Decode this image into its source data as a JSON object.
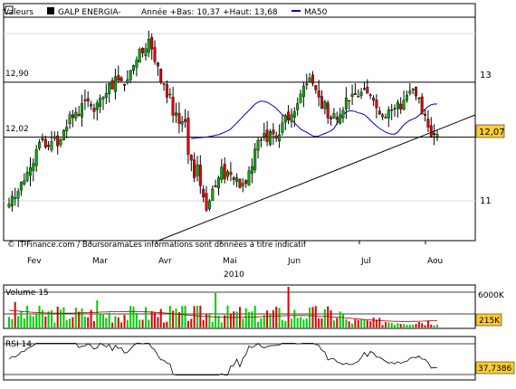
{
  "chart_data": [
    {
      "type": "candlestick",
      "name": "GALP ENERGIA-",
      "legend": {
        "label": "Valeurs",
        "series_name": "GALP ENERGIA-",
        "range_text": "Année +Bas: 10,37 +Haut: 13,68",
        "ma_label": "MA50",
        "ma_color": "#0000cc"
      },
      "y_axis": {
        "ticks": [
          "13",
          "12,07",
          "11"
        ],
        "range": [
          10.2,
          13.85
        ]
      },
      "levels": [
        {
          "label": "12,90",
          "value": 12.9
        },
        {
          "label": "12,02",
          "value": 12.02
        }
      ],
      "last_value": "12,07",
      "x_axis": {
        "months": [
          "Fev",
          "Mar",
          "Avr",
          "Mai",
          "Jun",
          "Jul",
          "Aou"
        ],
        "year": "2010"
      },
      "watermark": "© IT-Finance.com / BoursoramaLes informations sont données à titre indicatif",
      "close": [
        10.95,
        11.08,
        11.05,
        11.15,
        11.3,
        11.32,
        11.46,
        11.53,
        11.6,
        11.82,
        11.94,
        11.98,
        11.86,
        11.87,
        11.95,
        12.03,
        11.88,
        11.98,
        12.13,
        12.18,
        12.38,
        12.33,
        12.42,
        12.37,
        12.56,
        12.61,
        12.6,
        12.52,
        12.43,
        12.57,
        12.64,
        12.66,
        12.72,
        12.88,
        12.79,
        12.99,
        12.93,
        12.92,
        12.85,
        12.94,
        13.09,
        13.17,
        13.26,
        13.43,
        13.37,
        13.44,
        13.59,
        13.43,
        13.23,
        13.16,
        12.9,
        12.87,
        12.66,
        12.71,
        12.37,
        12.41,
        12.24,
        12.27,
        12.27,
        11.74,
        11.65,
        11.37,
        11.58,
        11.24,
        11.06,
        10.85,
        11.0,
        11.19,
        11.22,
        11.37,
        11.54,
        11.35,
        11.47,
        11.42,
        11.34,
        11.37,
        11.21,
        11.28,
        11.28,
        11.48,
        11.55,
        11.83,
        11.97,
        11.98,
        12.08,
        11.95,
        12.11,
        12.07,
        12.0,
        12.06,
        12.25,
        12.37,
        12.29,
        12.38,
        12.43,
        12.56,
        12.71,
        12.84,
        12.86,
        12.97,
        12.88,
        12.78,
        12.66,
        12.48,
        12.59,
        12.33,
        12.31,
        12.4,
        12.3,
        12.38,
        12.45,
        12.65,
        12.61,
        12.71,
        12.7,
        12.67,
        12.74,
        12.8,
        12.72,
        12.7,
        12.61,
        12.49,
        12.39,
        12.38,
        12.34,
        12.46,
        12.46,
        12.48,
        12.58,
        12.47,
        12.61,
        12.69,
        12.76,
        12.79,
        12.68,
        12.64,
        12.39,
        12.37,
        12.18,
        12.03,
        12.06,
        12.07
      ],
      "ma50": [
        12.0,
        12.0,
        12.01,
        12.01,
        12.02,
        12.02,
        12.03,
        12.04,
        12.05,
        12.06,
        12.08,
        12.1,
        12.12,
        12.15,
        12.2,
        12.25,
        12.3,
        12.35,
        12.4,
        12.45,
        12.5,
        12.55,
        12.58,
        12.6,
        12.59,
        12.58,
        12.55,
        12.52,
        12.48,
        12.43,
        12.38,
        12.35,
        12.33,
        12.3,
        12.25,
        12.2,
        12.15,
        12.12,
        12.1,
        12.07,
        12.04,
        12.03,
        12.04,
        12.06,
        12.08,
        12.1,
        12.12,
        12.16,
        12.24,
        12.32,
        12.38,
        12.42,
        12.44,
        12.44,
        12.43,
        12.41,
        12.4,
        12.38,
        12.34,
        12.29,
        12.24,
        12.2,
        12.16,
        12.13,
        12.1,
        12.08,
        12.07,
        12.07,
        12.1,
        12.16,
        12.22,
        12.26,
        12.29,
        12.31,
        12.33,
        12.37,
        12.42,
        12.47,
        12.51,
        12.54,
        12.55,
        12.55
      ]
    },
    {
      "type": "bar",
      "name": "Volume 15",
      "legend": "Volume 15",
      "y_axis": {
        "ticks": [
          "6000K"
        ],
        "range": [
          0,
          7000
        ]
      },
      "last_value": "215K",
      "up_color": "#00cc00",
      "down_color": "#dd0000"
    },
    {
      "type": "line",
      "name": "RSI 14",
      "legend": "RSI 14",
      "y_axis": {
        "range": [
          0,
          100
        ]
      },
      "last_value": "37,7386"
    }
  ]
}
